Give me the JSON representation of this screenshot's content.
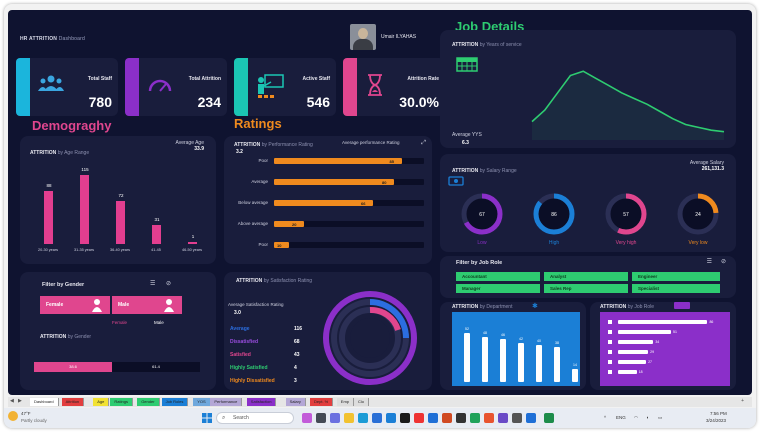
{
  "header": {
    "title": "HR ATTRITION",
    "subtitle": "Dashboard",
    "user_name": "Umair ILYAHAS"
  },
  "kpis": [
    {
      "label": "Total Staff",
      "value": "780",
      "color": "#1bb5dc",
      "icon": "people-icon"
    },
    {
      "label": "Total Attrition",
      "value": "234",
      "color": "#8b2fc9",
      "icon": "gauge-icon"
    },
    {
      "label": "Active Staff",
      "value": "546",
      "color": "#1bc6b4",
      "icon": "teacher-icon"
    },
    {
      "label": "Attrition Rate",
      "value": "30.0%",
      "color": "#e0468e",
      "icon": "hourglass-icon"
    }
  ],
  "demography": {
    "section_title": "Demograghy",
    "chart_title": "ATTRITION",
    "chart_subtitle": "by Age Range",
    "avg_label": "Average Age",
    "avg_value": "33.9"
  },
  "ratings": {
    "section_title": "Ratings",
    "chart_title": "ATTRITION",
    "chart_subtitle": "by Performance Rating",
    "avg_label": "Average performance Rating",
    "avg_value": "3.2"
  },
  "job_details": {
    "section_title": "Job Details",
    "chart_title": "ATTRITION",
    "chart_subtitle": "by Years of service",
    "avg_label": "Average YYS",
    "avg_value": "6.3"
  },
  "salary": {
    "chart_title": "ATTRITION",
    "chart_subtitle": "by Salary Range",
    "avg_label": "Average Salary",
    "avg_value": "261,131.3"
  },
  "gender": {
    "title": "Filter by Gender",
    "female": "Female",
    "male": "Male",
    "legend_female": "Female",
    "legend_male": "Male",
    "attrition_title": "ATTRITION",
    "attrition_subtitle": "by Gender",
    "female_pct": "38.6",
    "male_pct": "61.4"
  },
  "satisfaction": {
    "chart_title": "ATTRITION",
    "chart_subtitle": "by Satisfaction Rating",
    "avg_label": "Average Satisfaction Rating",
    "avg_value": "3.0",
    "rows": [
      {
        "label": "Average",
        "value": "116",
        "color": "#2b6ee0"
      },
      {
        "label": "Dissatisfied",
        "value": "68",
        "color": "#9b4de0"
      },
      {
        "label": "Satisfied",
        "value": "43",
        "color": "#e0468e"
      },
      {
        "label": "Highly Satisfied",
        "value": "4",
        "color": "#2ecc71"
      },
      {
        "label": "Highly Dissatisfied",
        "value": "3",
        "color": "#ef8a1e"
      }
    ]
  },
  "job_roles": {
    "title": "Filter by Job Role",
    "items": [
      "Accountant",
      "Analyst",
      "Engineer",
      "Manager",
      "Sales Rep",
      "Specialist"
    ]
  },
  "department": {
    "chart_title": "ATTRITION",
    "chart_subtitle": "by Department"
  },
  "job_role_chart": {
    "chart_title": "ATTRITION",
    "chart_subtitle": "by Job Role"
  },
  "chart_data": [
    {
      "type": "bar",
      "title": "ATTRITION by Age Range",
      "categories": [
        "20-30 years",
        "31-35 years",
        "36-40 years",
        "41-45",
        "46-50 years"
      ],
      "values": [
        88,
        115,
        72,
        31,
        1
      ],
      "ylim": [
        0,
        120
      ]
    },
    {
      "type": "bar",
      "orientation": "horizontal",
      "title": "ATTRITION by Performance Rating",
      "categories": [
        "Poor",
        "Average",
        "Below average",
        "Above average",
        "Poor"
      ],
      "values": [
        85,
        80,
        66,
        20,
        10
      ],
      "xlim": [
        0,
        100
      ]
    },
    {
      "type": "line",
      "title": "ATTRITION by Years of service",
      "x": [
        0,
        1,
        2,
        3,
        4,
        5,
        6,
        7,
        8,
        9,
        10,
        11,
        12,
        13,
        14,
        15
      ],
      "values": [
        10,
        18,
        30,
        42,
        45,
        40,
        35,
        30,
        26,
        22,
        17,
        12,
        8,
        6,
        4,
        3
      ]
    },
    {
      "type": "pie",
      "title": "ATTRITION by Salary Range",
      "series": [
        {
          "name": "Low",
          "values": [
            67
          ],
          "color": "#8b2fc9"
        },
        {
          "name": "High",
          "values": [
            86
          ],
          "color": "#1b7fd6"
        },
        {
          "name": "Very high",
          "values": [
            57
          ],
          "color": "#e0468e"
        },
        {
          "name": "Very low",
          "values": [
            24
          ],
          "color": "#ef8a1e"
        }
      ]
    },
    {
      "type": "pie",
      "title": "ATTRITION by Satisfaction Rating",
      "categories": [
        "Average",
        "Dissatisfied",
        "Satisfied",
        "Highly Satisfied",
        "Highly Dissatisfied"
      ],
      "values": [
        116,
        68,
        43,
        4,
        3
      ]
    },
    {
      "type": "bar",
      "title": "ATTRITION by Department",
      "values": [
        52,
        48,
        46,
        42,
        40,
        38,
        14
      ],
      "ylim": [
        0,
        60
      ]
    },
    {
      "type": "bar",
      "orientation": "horizontal",
      "title": "ATTRITION by Job Role",
      "values": [
        86,
        51,
        34,
        29,
        27,
        18
      ],
      "xlim": [
        0,
        100
      ]
    }
  ],
  "sheet_tabs": [
    "Dashboard",
    "Attrition",
    "Age",
    "Ratings",
    "Gender",
    "Job Roles",
    "YOS",
    "Performance",
    "Satisfaction",
    "Salary",
    "Dept. %",
    "Emp",
    "Clo"
  ],
  "taskbar": {
    "weather_temp": "47°F",
    "weather_desc": "Partly cloudy",
    "search_placeholder": "Search",
    "lang": "ENG",
    "time": "7:56 PM",
    "date": "3/24/2023"
  }
}
